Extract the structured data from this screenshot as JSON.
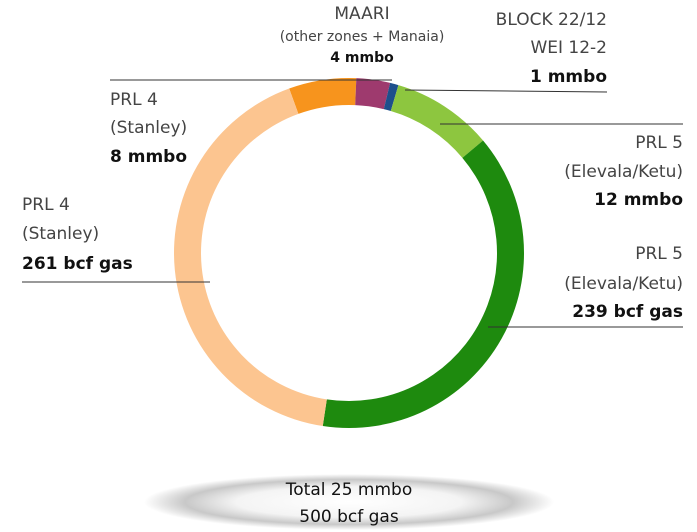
{
  "chart_data": {
    "type": "donut",
    "segments": [
      {
        "name_lines": [
          "PRL 4",
          "(Stanley)"
        ],
        "value": 8,
        "value_label": "8 mmbo",
        "color": "#f7941d"
      },
      {
        "name_lines": [
          "MAARI",
          "(other zones + Manaia)"
        ],
        "value": 4,
        "value_label": "4 mmbo",
        "color": "#9e3a6e"
      },
      {
        "name_lines": [
          "BLOCK 22/12",
          "WEI 12-2"
        ],
        "value": 1,
        "value_label": "1 mmbo",
        "color": "#1d4f8c"
      },
      {
        "name_lines": [
          "PRL 5",
          "(Elevala/Ketu)"
        ],
        "value": 12,
        "value_label": "12 mmbo",
        "color": "#8dc63f"
      },
      {
        "name_lines": [
          "PRL 5",
          "(Elevala/Ketu)"
        ],
        "value": 239,
        "value_label": "239 bcf gas",
        "color": "#1e8a0e"
      },
      {
        "name_lines": [
          "PRL 4",
          "(Stanley)"
        ],
        "value": 261,
        "value_label": "261 bcf gas",
        "color": "#fcc590"
      }
    ],
    "total_lines": [
      "Total 25 mmbo",
      "500 bcf gas"
    ]
  }
}
